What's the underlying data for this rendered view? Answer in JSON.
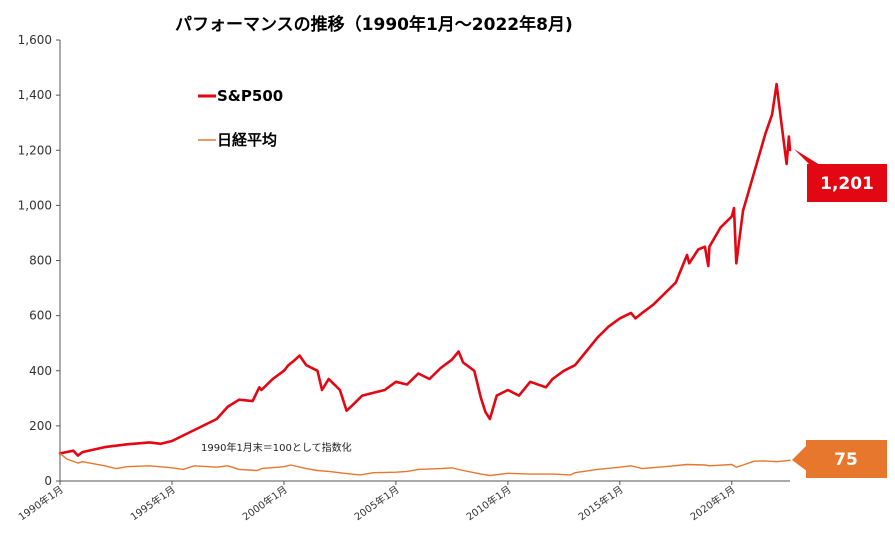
{
  "chart_data": {
    "type": "line",
    "title": "パフォーマンスの推移（1990年1月〜2022年8月)",
    "ylim": [
      0,
      1600
    ],
    "yticks": [
      "0",
      "200",
      "400",
      "600",
      "800",
      "1,000",
      "1,200",
      "1,400",
      "1,600"
    ],
    "xticks": [
      "1990年1月",
      "1995年1月",
      "2000年1月",
      "2005年1月",
      "2010年1月",
      "2015年1月",
      "2020年1月"
    ],
    "grid": false,
    "legend_position": "top-left",
    "note": "1990年1月末＝100として指数化",
    "series": [
      {
        "name": "S&P500",
        "color": "#e30613",
        "x": [
          1990.0,
          1990.6,
          1990.8,
          1991.0,
          1992.0,
          1993.0,
          1994.0,
          1994.5,
          1995.0,
          1995.5,
          1996.0,
          1996.5,
          1997.0,
          1997.5,
          1998.0,
          1998.6,
          1998.9,
          1999.0,
          1999.5,
          2000.0,
          2000.2,
          2000.5,
          2000.7,
          2001.0,
          2001.5,
          2001.7,
          2002.0,
          2002.5,
          2002.8,
          2003.0,
          2003.5,
          2004.0,
          2004.5,
          2005.0,
          2005.5,
          2006.0,
          2006.5,
          2007.0,
          2007.5,
          2007.8,
          2008.0,
          2008.5,
          2008.8,
          2009.0,
          2009.2,
          2009.5,
          2010.0,
          2010.5,
          2011.0,
          2011.7,
          2012.0,
          2012.5,
          2013.0,
          2013.5,
          2014.0,
          2014.5,
          2015.0,
          2015.5,
          2015.7,
          2016.0,
          2016.5,
          2017.0,
          2017.5,
          2018.0,
          2018.1,
          2018.5,
          2018.8,
          2018.95,
          2019.0,
          2019.5,
          2020.0,
          2020.1,
          2020.2,
          2020.5,
          2021.0,
          2021.5,
          2021.8,
          2022.0,
          2022.2,
          2022.45,
          2022.55,
          2022.6
        ],
        "values": [
          100,
          110,
          92,
          105,
          123,
          133,
          140,
          135,
          145,
          165,
          185,
          205,
          225,
          270,
          295,
          290,
          340,
          330,
          370,
          400,
          420,
          440,
          455,
          420,
          400,
          330,
          370,
          330,
          255,
          270,
          310,
          320,
          330,
          360,
          350,
          390,
          370,
          410,
          440,
          470,
          430,
          400,
          300,
          250,
          225,
          310,
          330,
          310,
          360,
          340,
          370,
          400,
          420,
          470,
          520,
          560,
          590,
          610,
          590,
          610,
          640,
          680,
          720,
          820,
          790,
          840,
          850,
          780,
          850,
          920,
          960,
          990,
          790,
          980,
          1120,
          1260,
          1330,
          1440,
          1310,
          1150,
          1250,
          1201
        ]
      },
      {
        "name": "日経平均",
        "color": "#e8772e",
        "x": [
          1990.0,
          1990.3,
          1990.8,
          1991.0,
          1992.0,
          1992.5,
          1993.0,
          1994.0,
          1995.0,
          1995.5,
          1996.0,
          1997.0,
          1997.5,
          1998.0,
          1998.8,
          1999.0,
          2000.0,
          2000.3,
          2001.0,
          2001.5,
          2002.0,
          2003.0,
          2003.4,
          2004.0,
          2005.0,
          2005.5,
          2006.0,
          2007.0,
          2007.5,
          2008.0,
          2008.8,
          2009.2,
          2010.0,
          2011.0,
          2012.0,
          2012.8,
          2013.0,
          2014.0,
          2015.0,
          2015.5,
          2016.0,
          2017.0,
          2018.0,
          2018.8,
          2019.0,
          2020.0,
          2020.2,
          2020.5,
          2021.0,
          2021.5,
          2022.0,
          2022.6
        ],
        "values": [
          100,
          80,
          65,
          70,
          55,
          45,
          52,
          55,
          48,
          42,
          55,
          50,
          55,
          42,
          38,
          45,
          52,
          58,
          45,
          38,
          35,
          25,
          22,
          30,
          32,
          35,
          42,
          45,
          48,
          38,
          25,
          20,
          28,
          25,
          25,
          22,
          30,
          42,
          50,
          55,
          45,
          52,
          60,
          58,
          55,
          60,
          50,
          58,
          72,
          73,
          70,
          75
        ]
      }
    ],
    "end_labels": [
      "1,201",
      "75"
    ]
  }
}
